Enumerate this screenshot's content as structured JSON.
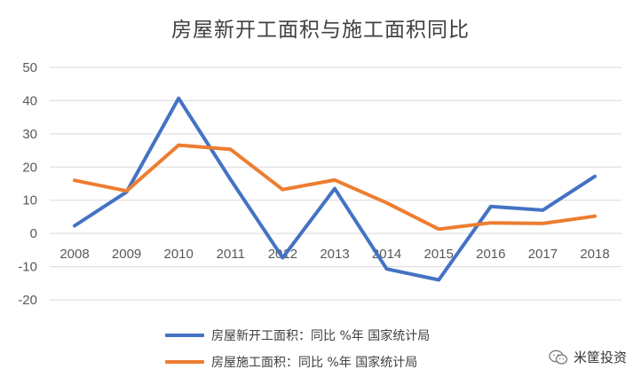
{
  "chart_data": {
    "type": "line",
    "title": "房屋新开工面积与施工面积同比",
    "categories": [
      "2008",
      "2009",
      "2010",
      "2011",
      "2012",
      "2013",
      "2014",
      "2015",
      "2016",
      "2017",
      "2018"
    ],
    "ylim": [
      -20,
      50
    ],
    "yticks": [
      -20,
      -10,
      0,
      10,
      20,
      30,
      40,
      50
    ],
    "grid": true,
    "xlabel": "",
    "ylabel": "",
    "legend_position": "bottom",
    "series": [
      {
        "name": "房屋新开工面积：同比 %年 国家统计局",
        "color": "#4472C4",
        "values": [
          2.3,
          12.5,
          40.7,
          16.2,
          -7.3,
          13.5,
          -10.7,
          -14.0,
          8.1,
          7.0,
          17.2
        ]
      },
      {
        "name": "房屋施工面积：同比 %年 国家统计局",
        "color": "#ED7D31",
        "values": [
          16.0,
          12.8,
          26.6,
          25.3,
          13.2,
          16.1,
          9.2,
          1.3,
          3.2,
          3.0,
          5.2
        ]
      }
    ]
  },
  "watermark": {
    "text": "米筐投资",
    "icon": "wechat-icon"
  }
}
